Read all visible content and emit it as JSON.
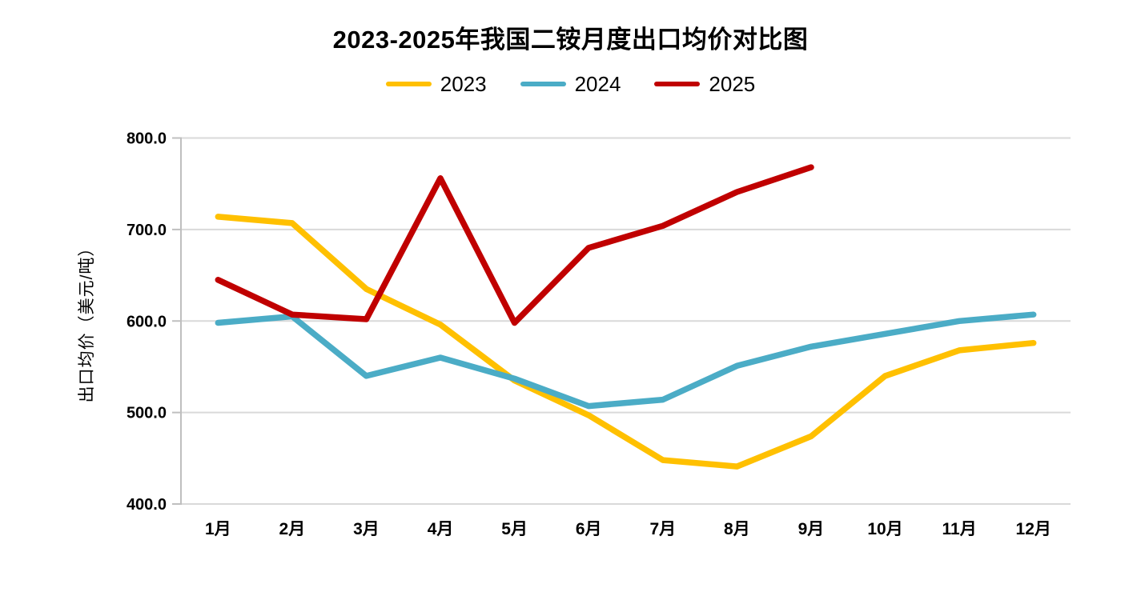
{
  "header": {
    "title": "2023-2025年我国二铵月度出口均价对比图"
  },
  "legend": {
    "position": "top-center",
    "items": [
      {
        "label": "2023",
        "color": "#FFC000"
      },
      {
        "label": "2024",
        "color": "#4BACC6"
      },
      {
        "label": "2025",
        "color": "#C00000"
      }
    ]
  },
  "chart_data": {
    "type": "line",
    "title": "2023-2025年我国二铵月度出口均价对比图",
    "xlabel": "",
    "ylabel": "出口均价（美元/吨）",
    "categories": [
      "1月",
      "2月",
      "3月",
      "4月",
      "5月",
      "6月",
      "7月",
      "8月",
      "9月",
      "10月",
      "11月",
      "12月"
    ],
    "ylim": [
      400,
      800
    ],
    "grid": true,
    "legend_position": "top-center",
    "yticks": [
      {
        "value": 800,
        "label": "800.0"
      },
      {
        "value": 700,
        "label": "700.0"
      },
      {
        "value": 600,
        "label": "600.0"
      },
      {
        "value": 500,
        "label": "500.0"
      },
      {
        "value": 400,
        "label": "400.0"
      }
    ],
    "series": [
      {
        "name": "2023",
        "color": "#FFC000",
        "values": [
          714,
          707,
          635,
          596,
          535,
          497,
          448,
          441,
          474,
          540,
          568,
          576
        ]
      },
      {
        "name": "2024",
        "color": "#4BACC6",
        "values": [
          598,
          605,
          540,
          560,
          537,
          507,
          514,
          551,
          572,
          586,
          600,
          607
        ]
      },
      {
        "name": "2025",
        "color": "#C00000",
        "values": [
          645,
          607,
          602,
          756,
          598,
          680,
          704,
          741,
          768,
          null,
          null,
          null
        ]
      }
    ],
    "colors": {
      "background": "#FFFFFF",
      "gridline": "#D9D9D9",
      "axis": "#BFBFBF",
      "text": "#000000"
    }
  }
}
